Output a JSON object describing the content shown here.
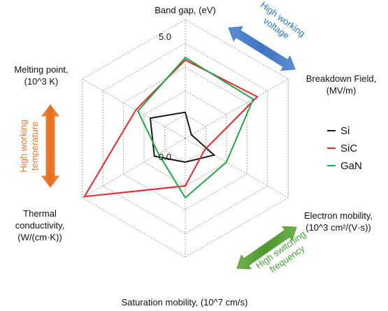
{
  "chart_data": {
    "type": "radar",
    "axes": [
      {
        "label_lines": [
          "Band gap, (eV)"
        ]
      },
      {
        "label_lines": [
          "Breakdown Field,",
          "(MV/m)"
        ]
      },
      {
        "label_lines": [
          "Electron mobility,",
          "(10^3 cm²/(V·s))"
        ]
      },
      {
        "label_lines": [
          "Saturation mobility,  (10^7 cm/s)"
        ]
      },
      {
        "label_lines": [
          "Thermal",
          "conductivity,",
          "(W/(cm·K))"
        ]
      },
      {
        "label_lines": [
          "Melting point,",
          "(10^3 K)"
        ]
      }
    ],
    "ticks": [
      "0.0",
      "5.0"
    ],
    "range": [
      0,
      5
    ],
    "grid_levels": 5,
    "series": [
      {
        "name": "Si",
        "color": "#1a1a1a",
        "values": [
          1.1,
          0.3,
          1.4,
          1.0,
          1.5,
          1.7
        ]
      },
      {
        "name": "SiC",
        "color": "#e8262b",
        "values": [
          3.3,
          3.5,
          0.95,
          2.0,
          4.9,
          2.4
        ]
      },
      {
        "name": "GaN",
        "color": "#22a84a",
        "values": [
          3.4,
          3.3,
          2.0,
          2.5,
          1.3,
          2.3
        ]
      }
    ],
    "annotations": [
      {
        "text_lines": [
          "High working",
          "voltage"
        ],
        "color": "#2f78c0",
        "arrow_color": "#3f7fc4"
      },
      {
        "text_lines": [
          "High working",
          "temperature"
        ],
        "color": "#e07a3a",
        "arrow_color": "#ed7d31"
      },
      {
        "text_lines": [
          "High switching",
          "frequency"
        ],
        "color": "#3fa535",
        "arrow_color": "#5aa137"
      }
    ]
  }
}
